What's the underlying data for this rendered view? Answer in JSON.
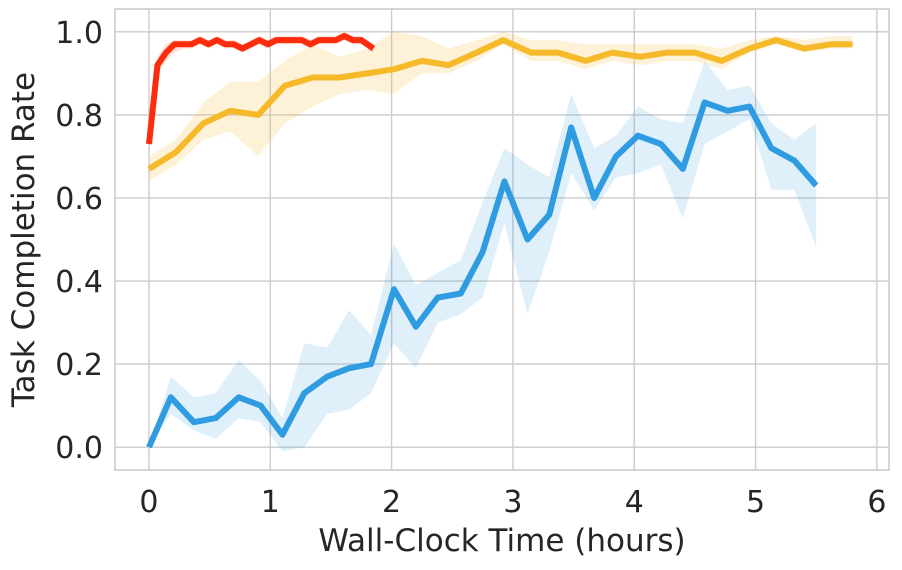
{
  "chart_data": {
    "type": "line",
    "xlabel": "Wall-Clock Time (hours)",
    "ylabel": "Task Completion Rate",
    "xlim": [
      -0.28,
      6.1
    ],
    "ylim": [
      -0.055,
      1.055
    ],
    "x_ticks": [
      0,
      1,
      2,
      3,
      4,
      5,
      6
    ],
    "x_tick_labels": [
      "0",
      "1",
      "2",
      "3",
      "4",
      "5",
      "6"
    ],
    "y_ticks": [
      0.0,
      0.2,
      0.4,
      0.6,
      0.8,
      1.0
    ],
    "y_tick_labels": [
      "0.0",
      "0.2",
      "0.4",
      "0.6",
      "0.8",
      "1.0"
    ],
    "grid": true,
    "series": [
      {
        "color": "#2f9be0",
        "band_color": "#2f9be0",
        "band_opacity": 0.15,
        "x": [
          0.0,
          0.18,
          0.37,
          0.55,
          0.74,
          0.92,
          1.1,
          1.28,
          1.47,
          1.65,
          1.83,
          2.02,
          2.2,
          2.38,
          2.57,
          2.75,
          2.93,
          3.12,
          3.3,
          3.48,
          3.67,
          3.85,
          4.03,
          4.22,
          4.4,
          4.58,
          4.77,
          4.95,
          5.13,
          5.32,
          5.5
        ],
        "y": [
          0.0,
          0.12,
          0.06,
          0.07,
          0.12,
          0.1,
          0.03,
          0.13,
          0.17,
          0.19,
          0.2,
          0.38,
          0.29,
          0.36,
          0.37,
          0.47,
          0.64,
          0.5,
          0.56,
          0.77,
          0.6,
          0.7,
          0.75,
          0.73,
          0.67,
          0.83,
          0.81,
          0.82,
          0.72,
          0.69,
          0.63
        ],
        "y_lower": [
          0.0,
          0.08,
          0.04,
          0.02,
          0.07,
          0.06,
          -0.01,
          0.0,
          0.08,
          0.09,
          0.13,
          0.25,
          0.19,
          0.3,
          0.32,
          0.36,
          0.54,
          0.32,
          0.47,
          0.66,
          0.57,
          0.65,
          0.66,
          0.68,
          0.55,
          0.73,
          0.76,
          0.79,
          0.62,
          0.62,
          0.48
        ],
        "y_upper": [
          0.0,
          0.17,
          0.12,
          0.13,
          0.21,
          0.16,
          0.07,
          0.25,
          0.24,
          0.33,
          0.27,
          0.49,
          0.39,
          0.42,
          0.45,
          0.59,
          0.72,
          0.68,
          0.65,
          0.85,
          0.72,
          0.75,
          0.82,
          0.79,
          0.78,
          0.93,
          0.86,
          0.87,
          0.78,
          0.74,
          0.78
        ]
      },
      {
        "color": "#f6b929",
        "band_color": "#f6b929",
        "band_opacity": 0.18,
        "x": [
          0.0,
          0.22,
          0.45,
          0.67,
          0.9,
          1.12,
          1.35,
          1.57,
          1.8,
          2.02,
          2.25,
          2.47,
          2.7,
          2.92,
          3.15,
          3.37,
          3.6,
          3.82,
          4.05,
          4.27,
          4.5,
          4.72,
          4.95,
          5.17,
          5.4,
          5.62,
          5.8
        ],
        "y": [
          0.67,
          0.71,
          0.78,
          0.81,
          0.8,
          0.87,
          0.89,
          0.89,
          0.9,
          0.91,
          0.93,
          0.92,
          0.95,
          0.98,
          0.95,
          0.95,
          0.93,
          0.95,
          0.94,
          0.95,
          0.95,
          0.93,
          0.96,
          0.98,
          0.96,
          0.97,
          0.97
        ],
        "y_lower": [
          0.64,
          0.68,
          0.74,
          0.76,
          0.7,
          0.78,
          0.82,
          0.85,
          0.86,
          0.85,
          0.9,
          0.9,
          0.93,
          0.97,
          0.93,
          0.93,
          0.91,
          0.93,
          0.92,
          0.93,
          0.93,
          0.91,
          0.95,
          0.97,
          0.95,
          0.96,
          0.96
        ],
        "y_upper": [
          0.7,
          0.74,
          0.83,
          0.88,
          0.88,
          0.93,
          0.97,
          0.94,
          0.96,
          1.0,
          0.99,
          0.96,
          0.98,
          1.0,
          0.98,
          0.98,
          0.97,
          0.97,
          0.97,
          0.97,
          0.97,
          0.96,
          0.98,
          0.99,
          0.98,
          0.99,
          0.99
        ]
      },
      {
        "color": "#fc2c0c",
        "band_color": "#fc2c0c",
        "band_opacity": 0.15,
        "x": [
          0.0,
          0.07,
          0.14,
          0.21,
          0.28,
          0.35,
          0.42,
          0.49,
          0.56,
          0.63,
          0.7,
          0.77,
          0.84,
          0.91,
          0.98,
          1.05,
          1.12,
          1.19,
          1.26,
          1.33,
          1.4,
          1.47,
          1.54,
          1.61,
          1.68,
          1.75,
          1.85
        ],
        "y": [
          0.73,
          0.92,
          0.95,
          0.97,
          0.97,
          0.97,
          0.98,
          0.97,
          0.98,
          0.97,
          0.97,
          0.96,
          0.97,
          0.98,
          0.97,
          0.98,
          0.98,
          0.98,
          0.98,
          0.97,
          0.98,
          0.98,
          0.98,
          0.99,
          0.98,
          0.98,
          0.96
        ],
        "y_lower": [
          0.71,
          0.9,
          0.93,
          0.95,
          0.96,
          0.96,
          0.97,
          0.96,
          0.97,
          0.96,
          0.96,
          0.95,
          0.96,
          0.97,
          0.96,
          0.97,
          0.97,
          0.97,
          0.97,
          0.96,
          0.97,
          0.97,
          0.97,
          0.98,
          0.97,
          0.97,
          0.95
        ],
        "y_upper": [
          0.75,
          0.94,
          0.97,
          0.98,
          0.98,
          0.98,
          0.99,
          0.98,
          0.99,
          0.98,
          0.98,
          0.97,
          0.98,
          0.99,
          0.98,
          0.99,
          0.99,
          0.99,
          0.99,
          0.98,
          0.99,
          0.99,
          0.99,
          1.0,
          0.99,
          0.99,
          0.97
        ]
      }
    ]
  }
}
